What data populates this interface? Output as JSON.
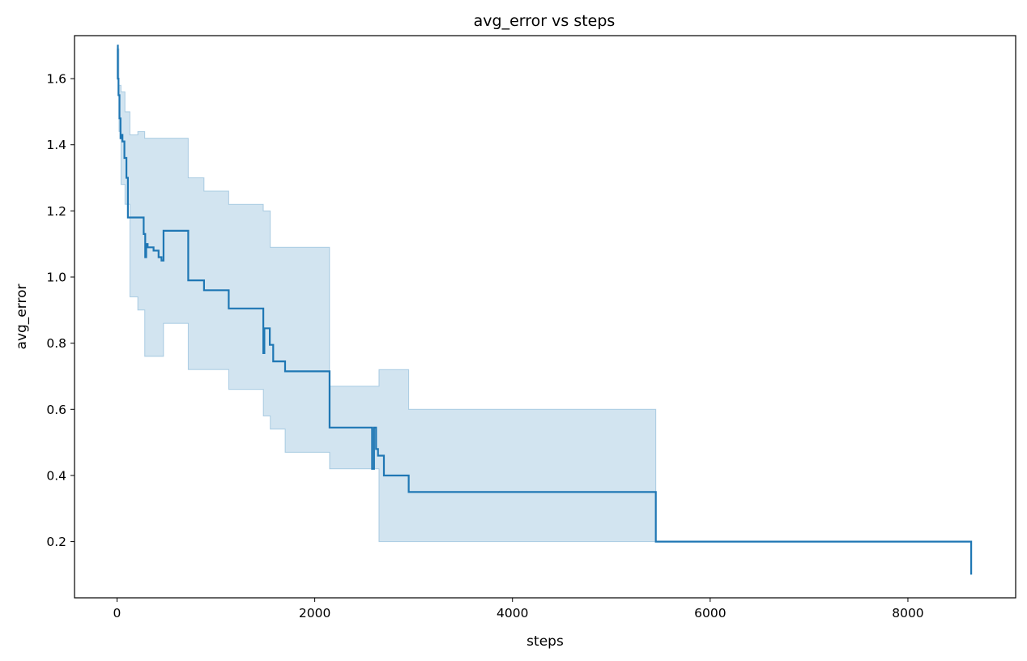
{
  "chart_data": {
    "type": "line",
    "title": "avg_error vs steps",
    "xlabel": "steps",
    "ylabel": "avg_error",
    "xlim": [
      -430,
      9090
    ],
    "ylim": [
      0.03,
      1.73
    ],
    "xticks": [
      0,
      2000,
      4000,
      6000,
      8000
    ],
    "yticks": [
      0.2,
      0.4,
      0.6,
      0.8,
      1.0,
      1.2,
      1.4,
      1.6
    ],
    "xtick_labels": [
      "0",
      "2000",
      "4000",
      "6000",
      "8000"
    ],
    "ytick_labels": [
      "0.2",
      "0.4",
      "0.6",
      "0.8",
      "1.0",
      "1.2",
      "1.4",
      "1.6"
    ],
    "grid": false,
    "legend": "none",
    "colors": {
      "line": "#1f77b4",
      "band_fill": "#1f77b4",
      "band_opacity": 0.2
    },
    "series": [
      {
        "style": "steps-post",
        "x": [
          0,
          8,
          15,
          25,
          35,
          45,
          55,
          75,
          95,
          110,
          125,
          140,
          210,
          270,
          285,
          295,
          310,
          370,
          420,
          450,
          470,
          720,
          880,
          1130,
          1480,
          1490,
          1545,
          1580,
          1700,
          2150,
          2580,
          2600,
          2620,
          2640,
          2660,
          2700,
          2950,
          5450,
          8640
        ],
        "y": [
          1.7,
          1.6,
          1.55,
          1.48,
          1.42,
          1.43,
          1.41,
          1.36,
          1.3,
          1.18,
          1.18,
          1.18,
          1.18,
          1.13,
          1.06,
          1.1,
          1.09,
          1.08,
          1.06,
          1.05,
          1.14,
          0.99,
          0.96,
          0.905,
          0.77,
          0.845,
          0.795,
          0.745,
          0.715,
          0.545,
          0.42,
          0.545,
          0.48,
          0.46,
          0.46,
          0.4,
          0.35,
          0.2,
          0.1
        ]
      }
    ],
    "band": {
      "x": [
        0,
        20,
        40,
        80,
        130,
        210,
        280,
        470,
        720,
        880,
        1130,
        1480,
        1550,
        1700,
        2150,
        2580,
        2650,
        2950,
        5450
      ],
      "upper": [
        1.69,
        1.58,
        1.56,
        1.5,
        1.43,
        1.44,
        1.42,
        1.42,
        1.3,
        1.26,
        1.22,
        1.2,
        1.09,
        1.09,
        0.67,
        0.67,
        0.72,
        0.6,
        0.5
      ],
      "lower": [
        1.6,
        1.44,
        1.28,
        1.22,
        0.94,
        0.9,
        0.76,
        0.86,
        0.72,
        0.72,
        0.66,
        0.58,
        0.54,
        0.47,
        0.42,
        0.42,
        0.2,
        0.2,
        0.2
      ]
    }
  }
}
